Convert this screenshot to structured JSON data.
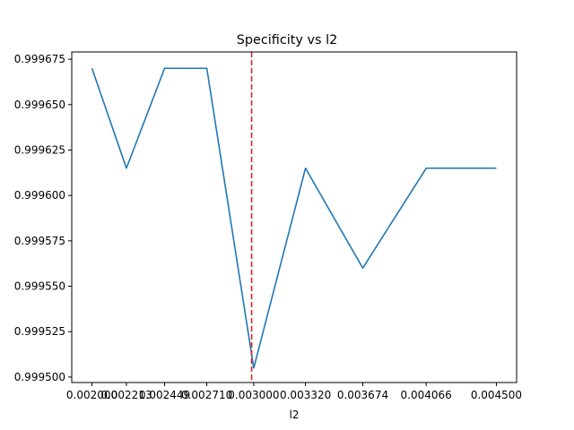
{
  "chart_data": {
    "type": "line",
    "title": "Specificity vs l2",
    "xlabel": "l2",
    "ylabel": "",
    "x_tick_labels": [
      "0.002000",
      "0.002213",
      "0.002449",
      "0.002710",
      "0.003000",
      "0.003320",
      "0.003674",
      "0.004066",
      "0.004500"
    ],
    "y_ticks": [
      0.9995,
      0.999525,
      0.99955,
      0.999575,
      0.9996,
      0.999625,
      0.99965,
      0.999675
    ],
    "y_tick_labels": [
      "0.999500",
      "0.999525",
      "0.999550",
      "0.999575",
      "0.999600",
      "0.999625",
      "0.999650",
      "0.999675"
    ],
    "ylim": [
      0.999497,
      0.999679
    ],
    "xlim": [
      0.001875,
      0.004625
    ],
    "series": [
      {
        "x": [
          0.002,
          0.002213,
          0.002449,
          0.00271,
          0.003,
          0.00332,
          0.003674,
          0.004066,
          0.0045
        ],
        "values": [
          0.99967,
          0.999615,
          0.99967,
          0.99967,
          0.999505,
          0.999615,
          0.99956,
          0.999615,
          0.999615
        ],
        "color": "#1f77b4"
      }
    ],
    "reference_line": {
      "x": 0.002987,
      "color": "#d62728",
      "style": "dashed"
    },
    "grid": false,
    "legend": "none"
  }
}
